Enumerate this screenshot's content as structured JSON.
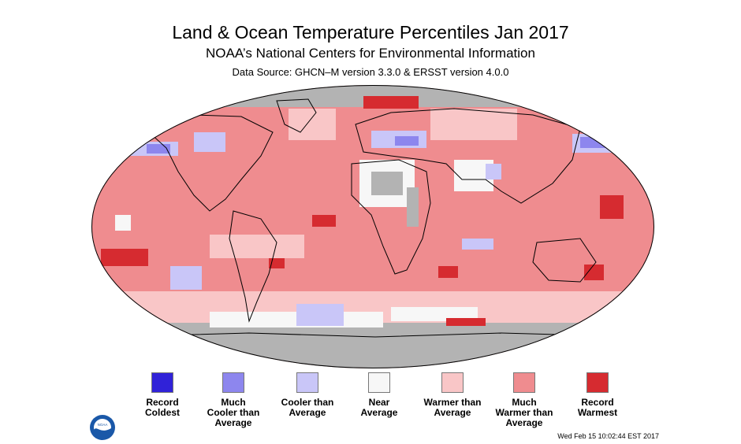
{
  "header": {
    "title": "Land & Ocean Temperature Percentiles Jan 2017",
    "subtitle": "NOAA’s National Centers for Environmental Information",
    "source": "Data Source: GHCN–M version 3.3.0 & ERSST version 4.0.0"
  },
  "colors": {
    "record_coldest": "#3022d8",
    "much_cooler": "#8d86ee",
    "cooler": "#c9c6f8",
    "near": "#f7f7f7",
    "warmer": "#f9c6c7",
    "much_warmer": "#ef8c8f",
    "record_warmest": "#d62b30",
    "no_data": "#b3b3b3"
  },
  "legend": [
    {
      "label": "Record\nColdest",
      "color": "#3022d8"
    },
    {
      "label": "Much\nCooler than\nAverage",
      "color": "#8d86ee"
    },
    {
      "label": "Cooler than\nAverage",
      "color": "#c9c6f8"
    },
    {
      "label": "Near\nAverage",
      "color": "#f7f7f7"
    },
    {
      "label": "Warmer than\nAverage",
      "color": "#f9c6c7"
    },
    {
      "label": "Much\nWarmer than\nAverage",
      "color": "#ef8c8f"
    },
    {
      "label": "Record\nWarmest",
      "color": "#d62b30"
    }
  ],
  "footer": {
    "timestamp": "Wed Feb 15 10:02:44 EST 2017",
    "logo_text": "NOAA"
  }
}
